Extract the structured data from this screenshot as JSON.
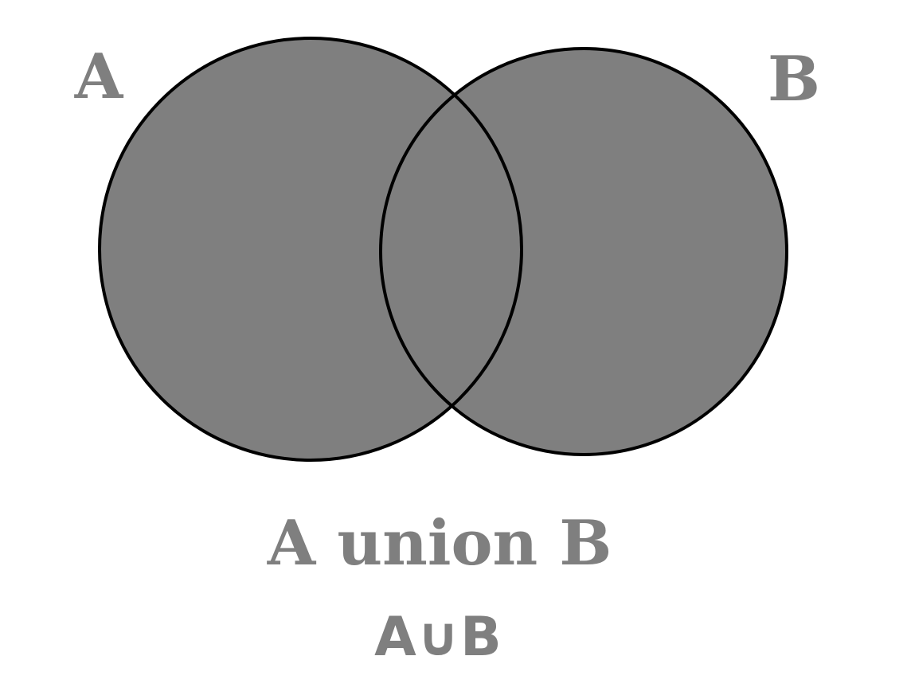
{
  "diagram": {
    "type": "venn",
    "operation": "union",
    "shaded_regions": [
      "A only",
      "A and B",
      "B only"
    ],
    "colors": {
      "fill": "#7f7f7f",
      "stroke": "#000000",
      "text": "#7f7f7f",
      "background": "#ffffff"
    },
    "sets": [
      {
        "id": "A",
        "label": "A"
      },
      {
        "id": "B",
        "label": "B"
      }
    ],
    "caption": "A union B",
    "notation": "A∪B"
  }
}
